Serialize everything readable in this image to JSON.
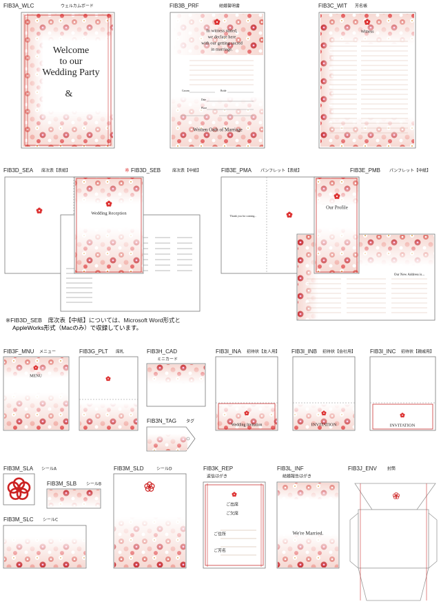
{
  "items": [
    {
      "code": "FIB3A_WLC",
      "name": "ウェルカムボード",
      "texts": [
        "Welcome",
        "to our",
        "Wedding Party",
        "&"
      ]
    },
    {
      "code": "FIB3B_PRF",
      "name": "結婚誓明書",
      "texts": [
        "In witness stated,",
        "we declare here",
        "with our getting sacred",
        "in marriage.",
        "Groom",
        "Bride",
        "Date",
        "Place",
        "Written Oath of Marriage"
      ]
    },
    {
      "code": "FIB3C_WIT",
      "name": "芳名帳",
      "texts": [
        "Witness"
      ]
    },
    {
      "code": "FIB3D_SEA",
      "name": "席次表【表紙】",
      "texts": []
    },
    {
      "mark": "※",
      "code": "FIB3D_SEB",
      "name": "席次表【中紙】",
      "texts": [
        "Wedding Reception"
      ]
    },
    {
      "code": "FIB3E_PMA",
      "name": "パンフレット【表紙】",
      "texts": [
        "Thank you for coming..."
      ]
    },
    {
      "code": "FIB3E_PMB",
      "name": "パンフレット【中紙】",
      "texts": [
        "Our Profile",
        "Our New Address is..."
      ]
    },
    {
      "code": "FIB3F_MNU",
      "name": "メニュー",
      "texts": [
        "MENU"
      ]
    },
    {
      "code": "FIB3G_PLT",
      "name": "席札",
      "texts": []
    },
    {
      "code": "FIB3H_CAD",
      "name": "ミニカード",
      "texts": []
    },
    {
      "code": "FIB3N_TAG",
      "name": "タグ",
      "texts": []
    },
    {
      "code": "FIB3I_INA",
      "name": "招待状【友人用】",
      "texts": [
        "Wedding Invitation"
      ]
    },
    {
      "code": "FIB3I_INB",
      "name": "招待状【会社用】",
      "texts": [
        "INVITATION"
      ]
    },
    {
      "code": "FIB3I_INC",
      "name": "招待状【親戚用】",
      "texts": [
        "INVITATION"
      ]
    },
    {
      "code": "FIB3M_SLA",
      "name": "シールA",
      "texts": []
    },
    {
      "code": "FIB3M_SLB",
      "name": "シールB",
      "texts": []
    },
    {
      "code": "FIB3M_SLC",
      "name": "シールC",
      "texts": []
    },
    {
      "code": "FIB3M_SLD",
      "name": "シールD",
      "texts": []
    },
    {
      "code": "FIB3K_REP",
      "name": "返信はがき",
      "texts": [
        "ご出席",
        "ご欠席",
        "ご住所",
        "ご芳名"
      ]
    },
    {
      "code": "FIB3L_INF",
      "name": "結婚報告はがき",
      "texts": [
        "We're Married."
      ]
    },
    {
      "code": "FIB3J_ENV",
      "name": "封筒",
      "texts": []
    }
  ],
  "note": [
    "※FIB3D_SEB　席次表【中紙】については、Microsoft Word形式と",
    "AppleWorks形式（Macのみ）で収録しています。"
  ]
}
